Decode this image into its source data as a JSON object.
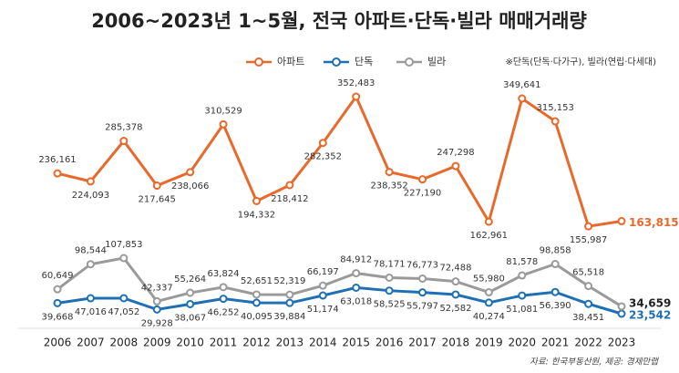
{
  "chart_data": {
    "type": "line",
    "title": "2006~2023년 1~5월, 전국 아파트·단독·빌라 매매거래량",
    "note": "※단독(단독·다가구), 빌라(연립·다세대)",
    "source": "자료: 한국부동산원, 제공: 경제만랩",
    "categories": [
      "2006",
      "2007",
      "2008",
      "2009",
      "2010",
      "2011",
      "2012",
      "2013",
      "2014",
      "2015",
      "2016",
      "2017",
      "2018",
      "2019",
      "2020",
      "2021",
      "2022",
      "2023"
    ],
    "series": [
      {
        "name": "아파트",
        "color": "#e8692a",
        "values": [
          236161,
          224093,
          285378,
          217645,
          238066,
          310529,
          194332,
          218412,
          282352,
          352483,
          238352,
          227190,
          247298,
          162961,
          349641,
          315153,
          155987,
          163815
        ],
        "value_labels": [
          "236,161",
          "224,093",
          "285,378",
          "217,645",
          "238,066",
          "310,529",
          "194,332",
          "218,412",
          "282,352",
          "352,483",
          "238,352",
          "227,190",
          "247,298",
          "162,961",
          "349,641",
          "315,153",
          "155,987",
          "163,815"
        ]
      },
      {
        "name": "단독",
        "color": "#1f6fb4",
        "values": [
          39668,
          47016,
          47052,
          29928,
          38067,
          46252,
          40095,
          39884,
          51174,
          63018,
          58525,
          55797,
          52582,
          40274,
          51081,
          56390,
          38451,
          23542
        ],
        "value_labels": [
          "39,668",
          "47,016",
          "47,052",
          "29,928",
          "38,067",
          "46,252",
          "40,095",
          "39,884",
          "51,174",
          "63,018",
          "58,525",
          "55,797",
          "52,582",
          "40,274",
          "51,081",
          "56,390",
          "38,451",
          "23,542"
        ]
      },
      {
        "name": "빌라",
        "color": "#9a9a9a",
        "values": [
          60649,
          98544,
          107853,
          42337,
          55264,
          63824,
          52651,
          52319,
          66197,
          84912,
          78171,
          76773,
          72488,
          55980,
          81578,
          98858,
          65518,
          34659
        ],
        "value_labels": [
          "60,649",
          "98,544",
          "107,853",
          "42,337",
          "55,264",
          "63,824",
          "52,651",
          "52,319",
          "66,197",
          "84,912",
          "78,171",
          "76,773",
          "72,488",
          "55,980",
          "81,578",
          "98,858",
          "65,518",
          "34,659"
        ]
      }
    ]
  }
}
